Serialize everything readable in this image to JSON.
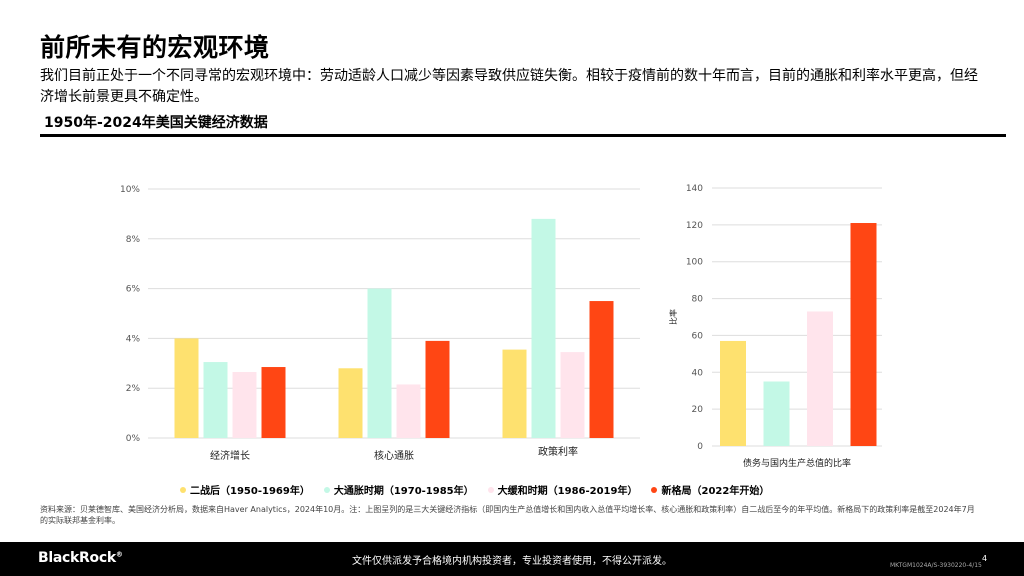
{
  "title": "前所未有的宏观环境",
  "subtitle": "我们目前正处于一个不同寻常的宏观环境中：劳动适龄人口减少等因素导致供应链失衡。相较于疫情前的数十年而言，目前的通胀和利率水平更高，但经济增长前景更具不确定性。",
  "section_title": "1950年-2024年美国关键经济数据",
  "colors": {
    "postwar": "#FEE16F",
    "inflation": "#C3F8E6",
    "moderation": "#FFE4EC",
    "new_regime": "#FF4614",
    "grid": "#DDDDDD",
    "axis_text": "#555555"
  },
  "chart_data": [
    {
      "type": "bar",
      "title": "",
      "xlabel": "",
      "ylabel": "",
      "categories": [
        "经济增长",
        "核心通胀",
        "政策利率"
      ],
      "ylim": [
        0,
        10
      ],
      "yticks": [
        "0%",
        "2%",
        "4%",
        "6%",
        "8%",
        "10%"
      ],
      "series": [
        {
          "name": "二战后（1950-1969年）",
          "values": [
            4.0,
            2.8,
            3.55
          ]
        },
        {
          "name": "大通胀时期（1970-1985年）",
          "values": [
            3.05,
            6.0,
            8.8
          ]
        },
        {
          "name": "大缓和时期（1986-2019年）",
          "values": [
            2.65,
            2.15,
            3.45
          ]
        },
        {
          "name": "新格局（2022年开始）",
          "values": [
            2.85,
            3.9,
            5.5
          ]
        }
      ]
    },
    {
      "type": "bar",
      "title": "",
      "xlabel": "债务与国内生产总值的比率",
      "ylabel": "比率",
      "categories": [
        "债务与国内生产总值的比率"
      ],
      "ylim": [
        0,
        140
      ],
      "yticks": [
        "0",
        "20",
        "40",
        "60",
        "80",
        "100",
        "120",
        "140"
      ],
      "series": [
        {
          "name": "二战后（1950-1969年）",
          "values": [
            57
          ]
        },
        {
          "name": "大通胀时期（1970-1985年）",
          "values": [
            35
          ]
        },
        {
          "name": "大缓和时期（1986-2019年）",
          "values": [
            73
          ]
        },
        {
          "name": "新格局（2022年开始）",
          "values": [
            121
          ]
        }
      ]
    }
  ],
  "legend": [
    {
      "label": "二战后（1950-1969年）",
      "color_key": "postwar"
    },
    {
      "label": "大通胀时期（1970-1985年）",
      "color_key": "inflation"
    },
    {
      "label": "大缓和时期（1986-2019年）",
      "color_key": "moderation"
    },
    {
      "label": "新格局（2022年开始）",
      "color_key": "new_regime"
    }
  ],
  "source": "资料来源：贝莱德智库、美国经济分析局，数据来自Haver Analytics，2024年10月。注：上图呈列的是三大关键经济指标（即国内生产总值增长和国内收入总值平均增长率、核心通胀和政策利率）自二战后至今的年平均值。新格局下的政策利率是截至2024年7月的实际联邦基金利率。",
  "footer": {
    "brand": "BlackRock",
    "brand_mark": "®",
    "disclaimer": "文件仅供派发予合格境内机构投资者，专业投资者使用，不得公开派发。",
    "page_number": "4",
    "doc_code": "MKTGM1024A/S-3930220-4/15"
  }
}
